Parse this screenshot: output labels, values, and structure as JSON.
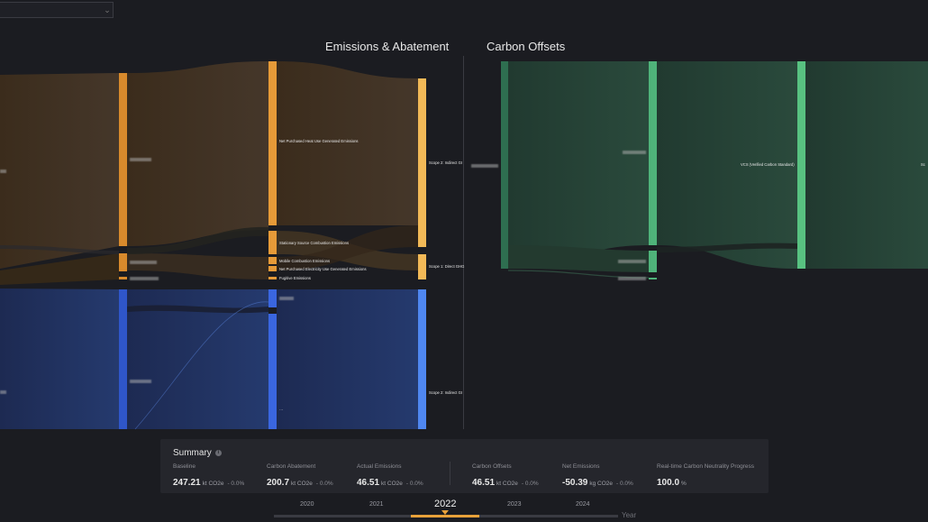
{
  "filter": {
    "selected": ""
  },
  "titles": {
    "emissions": "Emissions & Abatement",
    "offsets": "Carbon Offsets"
  },
  "sankey_emissions": {
    "labels": {
      "net_heat": "Net Purchased Heat Use Generated Emissions",
      "stationary": "Stationary Source Combustion Emissions",
      "mobile": "Mobile Combustion Emissions",
      "net_elec": "Net Purchased Electricity Use Generated Emissions",
      "fugitive": "Fugitive Emissions",
      "scope2_top": "Scope 2: Indirect GI",
      "scope1": "Scope 1: Direct GHG",
      "scope2_bottom": "Scope 2: Indirect GI",
      "small_bottom": "…"
    },
    "colors": {
      "brown": "#d88a2c",
      "orange_light": "#f2b957",
      "blue": "#3c6ee0",
      "blue_light": "#4f87f0"
    }
  },
  "sankey_offsets": {
    "labels": {
      "vcs": "VCS (Verified Carbon Standard)",
      "right_edge": "Sc"
    },
    "colors": {
      "green_dark": "#2e6e50",
      "green": "#4fb37a"
    }
  },
  "summary": {
    "title": "Summary",
    "info_icon": "i",
    "metrics": [
      {
        "label": "Baseline",
        "value": "247.21",
        "unit": "kt CO2e",
        "change": "- 0.0%"
      },
      {
        "label": "Carbon Abatement",
        "value": "200.7",
        "unit": "kt CO2e",
        "change": "- 0.0%"
      },
      {
        "label": "Actual Emissions",
        "value": "46.51",
        "unit": "kt CO2e",
        "change": "- 0.0%"
      },
      {
        "label": "Carbon Offsets",
        "value": "46.51",
        "unit": "kt CO2e",
        "change": "- 0.0%"
      },
      {
        "label": "Net Emissions",
        "value": "-50.39",
        "unit": "kg CO2e",
        "change": "- 0.0%"
      },
      {
        "label": "Real-time Carbon Neutrality Progress",
        "value": "100.0",
        "unit": "%",
        "change": ""
      }
    ]
  },
  "timeline": {
    "years": [
      "2020",
      "2021",
      "2022",
      "2023",
      "2024"
    ],
    "selected": "2022",
    "axis_label": "Year"
  }
}
